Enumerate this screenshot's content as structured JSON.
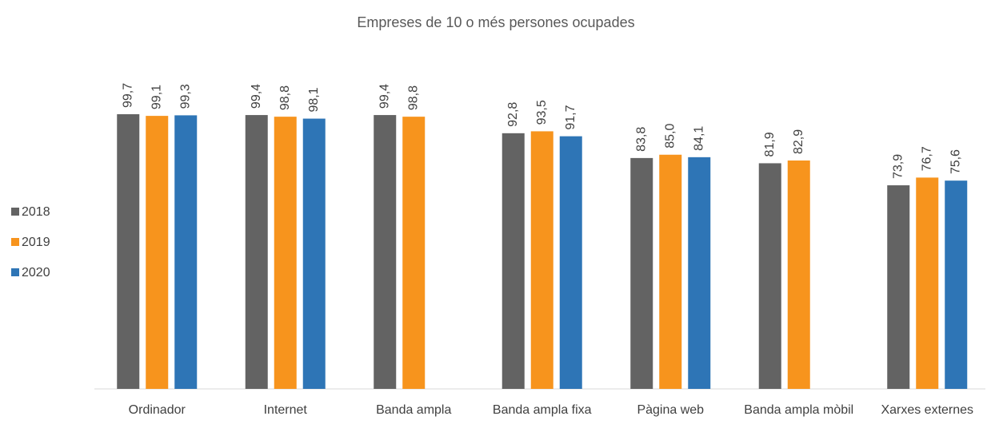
{
  "chart_data": {
    "type": "bar",
    "title": "Empreses de 10 o més persones ocupades",
    "categories": [
      "Ordinador",
      "Internet",
      "Banda ampla",
      "Banda ampla fixa",
      "Pàgina web",
      "Banda ampla mòbil",
      "Xarxes externes"
    ],
    "series": [
      {
        "name": "2018",
        "color": "#636363",
        "values": [
          99.7,
          99.4,
          99.4,
          92.8,
          83.8,
          81.9,
          73.9
        ],
        "value_labels": [
          "99,7",
          "99,4",
          "99,4",
          "92,8",
          "83,8",
          "81,9",
          "73,9"
        ]
      },
      {
        "name": "2019",
        "color": "#f7941d",
        "values": [
          99.1,
          98.8,
          98.8,
          93.5,
          85,
          82.9,
          76.7
        ],
        "value_labels": [
          "99,1",
          "98,8",
          "98,8",
          "93,5",
          "85,0",
          "82,9",
          "76,7"
        ]
      },
      {
        "name": "2020",
        "color": "#2e75b6",
        "values": [
          99.3,
          98.1,
          null,
          91.7,
          84.1,
          null,
          75.6
        ],
        "value_labels": [
          "99,3",
          "98,1",
          null,
          "91,7",
          "84,1",
          null,
          "75,6"
        ]
      }
    ],
    "ylim": [
      0,
      100
    ],
    "legend": "left"
  }
}
